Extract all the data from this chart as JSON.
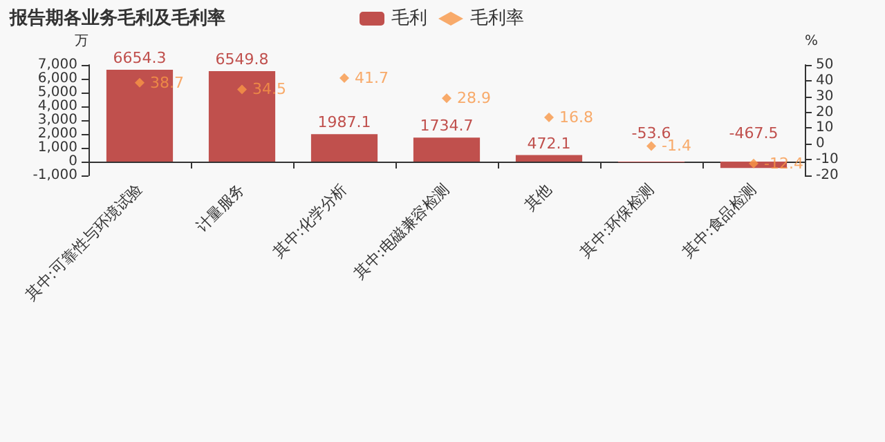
{
  "chart_data": {
    "type": "bar",
    "title": "报告期各业务毛利及毛利率",
    "ylabel": "万",
    "y2label": "%",
    "categories": [
      "其中:可靠性与环境试验",
      "计量服务",
      "其中:化学分析",
      "其中:电磁兼容检测",
      "其他",
      "其中:环保检测",
      "其中:食品检测"
    ],
    "series": [
      {
        "name": "毛利",
        "type": "bar",
        "color": "#c0504d",
        "values": [
          6654.3,
          6549.8,
          1987.1,
          1734.7,
          472.1,
          -53.6,
          -467.5
        ]
      },
      {
        "name": "毛利率",
        "type": "scatter",
        "axis": "y2",
        "color": "#f79646",
        "values": [
          38.7,
          34.5,
          41.7,
          28.9,
          16.8,
          -1.4,
          -12.4
        ]
      }
    ],
    "ylim": [
      -1000,
      7000
    ],
    "yticks": [
      {
        "value": -1000,
        "label": "-1,000"
      },
      0,
      {
        "value": 1000,
        "label": "1,000"
      },
      {
        "value": 2000,
        "label": "2,000"
      },
      {
        "value": 3000,
        "label": "3,000"
      },
      {
        "value": 4000,
        "label": "4,000"
      },
      {
        "value": 5000,
        "label": "5,000"
      },
      {
        "value": 6000,
        "label": "6,000"
      },
      {
        "value": 7000,
        "label": "7,000"
      }
    ],
    "y2lim": [
      -20,
      50
    ],
    "y2ticks": [
      -20,
      -10,
      0,
      10,
      20,
      30,
      40,
      50
    ],
    "data_labels": true,
    "grid": false,
    "legend": "top",
    "marker": "diamond"
  }
}
